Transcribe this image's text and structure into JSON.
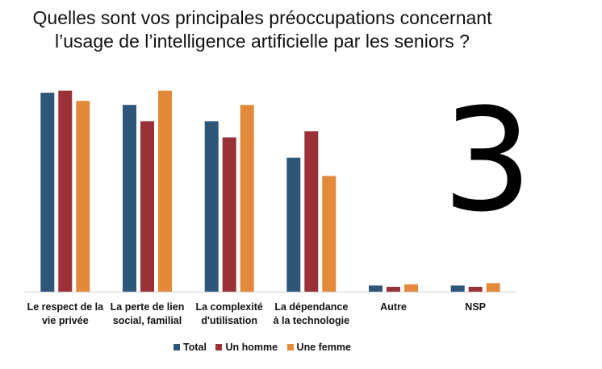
{
  "title": {
    "line1": "Quelles sont vos principales préoccupations concernant",
    "line2": "l’usage de l’intelligence artificielle par les seniors ?"
  },
  "slide_number": "3",
  "colors": {
    "total": "#2e5679",
    "homme": "#9a3137",
    "femme": "#e28a3a",
    "axis": "#d0d0d0"
  },
  "chart_data": {
    "type": "bar",
    "categories": [
      [
        "Le respect de la",
        "vie privée"
      ],
      [
        "La perte de lien",
        "social, familial"
      ],
      [
        "La complexité",
        "d'utilisation"
      ],
      [
        "La dépendance",
        "à la technologie"
      ],
      [
        "Autre"
      ],
      [
        "NSP"
      ]
    ],
    "series": [
      {
        "name": "Total",
        "values": [
          49,
          46,
          42,
          33,
          1.5,
          1.5
        ]
      },
      {
        "name": "Un homme",
        "values": [
          49.5,
          42,
          38,
          39.5,
          1.2,
          1.2
        ]
      },
      {
        "name": "Une femme",
        "values": [
          47,
          49.5,
          46,
          28.5,
          1.8,
          2.1
        ]
      }
    ],
    "ylim": [
      0,
      52
    ],
    "grid": false,
    "legend_position": "bottom"
  }
}
